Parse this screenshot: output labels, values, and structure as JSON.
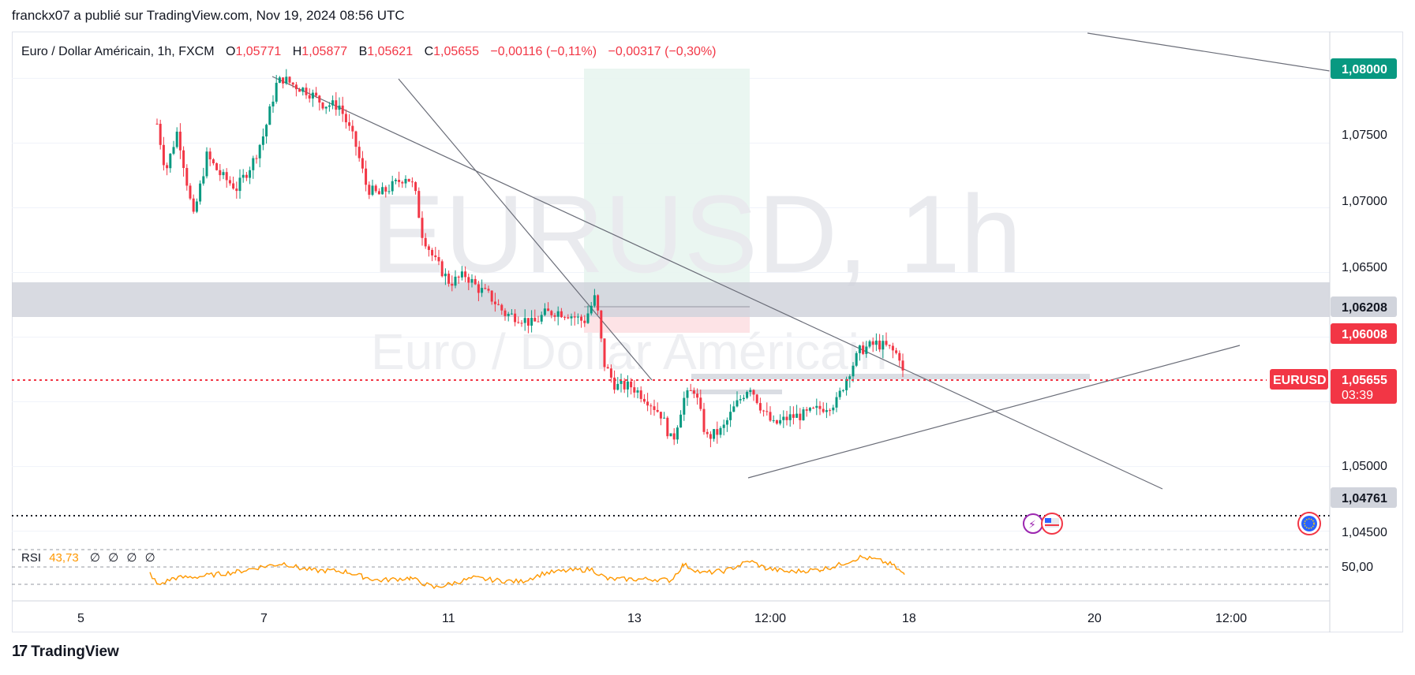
{
  "header": {
    "attribution": "franckx07 a publié sur TradingView.com, Nov 19, 2024 08:56 UTC"
  },
  "legend": {
    "symbol": "Euro / Dollar Américain, 1h, FXCM",
    "o_label": "O",
    "o_value": "1,05771",
    "h_label": "H",
    "h_value": "1,05877",
    "b_label": "B",
    "b_value": "1,05621",
    "c_label": "C",
    "c_value": "1,05655",
    "change": "−0,00116 (−0,11%)",
    "change2": "−0,00317 (−0,30%)"
  },
  "watermark": {
    "ticker": "EURUSD, 1h",
    "name": "Euro / Dollar Américain"
  },
  "price_axis": {
    "ticks": [
      "1,07500",
      "1,07000",
      "1,06500",
      "1,05000",
      "1,04500"
    ],
    "labels": [
      {
        "text": "1,08000",
        "bg": "#089981",
        "fg": "#ffffff"
      },
      {
        "text": "1,06208",
        "bg": "#d1d4dc",
        "fg": "#131722"
      },
      {
        "text": "1,06008",
        "bg": "#f23645",
        "fg": "#ffffff"
      },
      {
        "text": "1,04761",
        "bg": "#d1d4dc",
        "fg": "#131722"
      }
    ],
    "current": {
      "symbol": "EURUSD",
      "price": "1,05655",
      "countdown": "03:39",
      "bg": "#f23645"
    }
  },
  "rsi": {
    "label": "RSI",
    "value": "43,73",
    "extras": [
      "∅",
      "∅",
      "∅",
      "∅"
    ],
    "level": "50,00",
    "color": "#ff9800"
  },
  "time_axis": [
    "5",
    "7",
    "11",
    "13",
    "12:00",
    "18",
    "20",
    "12:00"
  ],
  "footer": {
    "brand": "TradingView"
  },
  "chart_data": {
    "type": "candlestick",
    "symbol": "EURUSD",
    "interval": "1h",
    "ylim": [
      1.044,
      1.0835
    ],
    "yticks": [
      1.045,
      1.05,
      1.065,
      1.07,
      1.075
    ],
    "colors": {
      "up": "#089981",
      "down": "#f23645"
    },
    "support_zone": [
      1.0615,
      1.0638
    ],
    "current_price": 1.05655,
    "key_level_dotted": 1.04665,
    "series": [
      {
        "name": "candles",
        "path": [
          [
            199,
            1.0765
          ],
          [
            210,
            1.0728
          ],
          [
            225,
            1.076
          ],
          [
            245,
            1.0692
          ],
          [
            262,
            1.074
          ],
          [
            280,
            1.0725
          ],
          [
            300,
            1.0715
          ],
          [
            320,
            1.0735
          ],
          [
            335,
            1.0758
          ],
          [
            350,
            1.0795
          ],
          [
            358,
            1.08
          ],
          [
            372,
            1.0795
          ],
          [
            390,
            1.079
          ],
          [
            410,
            1.078
          ],
          [
            430,
            1.0779
          ],
          [
            450,
            1.075
          ],
          [
            465,
            1.0715
          ],
          [
            480,
            1.071
          ],
          [
            500,
            1.0718
          ],
          [
            515,
            1.0725
          ],
          [
            525,
            1.0715
          ],
          [
            535,
            1.068
          ],
          [
            550,
            1.066
          ],
          [
            570,
            1.0642
          ],
          [
            590,
            1.0648
          ],
          [
            605,
            1.0638
          ],
          [
            620,
            1.0632
          ],
          [
            640,
            1.0618
          ],
          [
            660,
            1.0615
          ],
          [
            675,
            1.061
          ],
          [
            690,
            1.0618
          ],
          [
            705,
            1.062
          ],
          [
            720,
            1.0618
          ],
          [
            740,
            1.0612
          ],
          [
            755,
            1.0632
          ],
          [
            765,
            1.058
          ],
          [
            780,
            1.0562
          ],
          [
            800,
            1.0562
          ],
          [
            820,
            1.0552
          ],
          [
            838,
            1.054
          ],
          [
            852,
            1.0518
          ],
          [
            866,
            1.0552
          ],
          [
            880,
            1.056
          ],
          [
            895,
            1.0522
          ],
          [
            915,
            1.0528
          ],
          [
            930,
            1.0545
          ],
          [
            950,
            1.0563
          ],
          [
            965,
            1.0545
          ],
          [
            980,
            1.0532
          ],
          [
            1000,
            1.0538
          ],
          [
            1020,
            1.054
          ],
          [
            1040,
            1.0545
          ],
          [
            1060,
            1.055
          ],
          [
            1075,
            1.0572
          ],
          [
            1090,
            1.059
          ],
          [
            1110,
            1.0595
          ],
          [
            1125,
            1.0592
          ],
          [
            1140,
            1.0585
          ],
          [
            1146,
            1.0566
          ]
        ]
      }
    ],
    "rsi": [
      [
        190,
        45
      ],
      [
        200,
        35
      ],
      [
        220,
        41
      ],
      [
        250,
        42
      ],
      [
        300,
        46
      ],
      [
        330,
        50
      ],
      [
        360,
        53
      ],
      [
        380,
        49
      ],
      [
        400,
        47
      ],
      [
        420,
        47
      ],
      [
        440,
        46
      ],
      [
        460,
        42
      ],
      [
        480,
        39
      ],
      [
        520,
        41
      ],
      [
        550,
        33
      ],
      [
        570,
        36
      ],
      [
        600,
        41
      ],
      [
        630,
        39
      ],
      [
        660,
        38
      ],
      [
        690,
        45
      ],
      [
        720,
        47
      ],
      [
        750,
        48
      ],
      [
        770,
        40
      ],
      [
        800,
        40
      ],
      [
        830,
        40
      ],
      [
        850,
        39
      ],
      [
        866,
        52
      ],
      [
        890,
        45
      ],
      [
        920,
        47
      ],
      [
        950,
        55
      ],
      [
        970,
        49
      ],
      [
        1000,
        46
      ],
      [
        1040,
        48
      ],
      [
        1060,
        51
      ],
      [
        1090,
        58
      ],
      [
        1110,
        56
      ],
      [
        1130,
        52
      ],
      [
        1146,
        43.73
      ]
    ]
  }
}
